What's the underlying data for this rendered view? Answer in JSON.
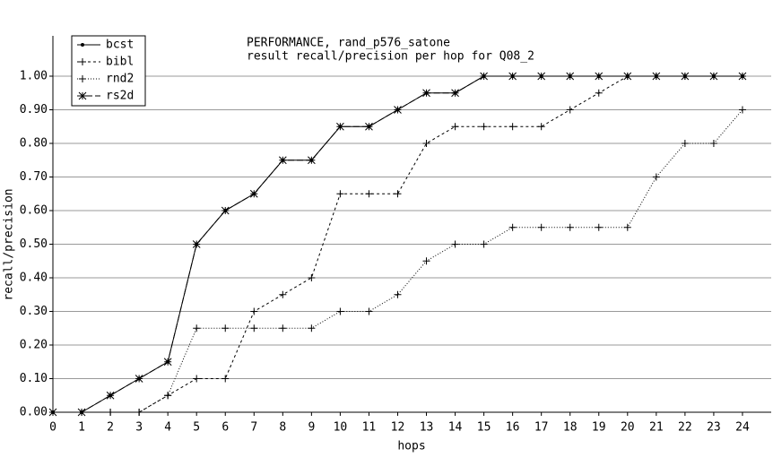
{
  "chart_data": {
    "type": "line",
    "title": "PERFORMANCE, rand_p576_satone",
    "subtitle": "result recall/precision per hop for Q08_2",
    "x_label": "hops",
    "y_label": "recall/precision",
    "x": [
      0,
      1,
      2,
      3,
      4,
      5,
      6,
      7,
      8,
      9,
      10,
      11,
      12,
      13,
      14,
      15,
      16,
      17,
      18,
      19,
      20,
      21,
      22,
      23,
      24
    ],
    "xlim": [
      0,
      25
    ],
    "xticks": [
      0,
      1,
      2,
      3,
      4,
      5,
      6,
      7,
      8,
      9,
      10,
      11,
      12,
      13,
      14,
      15,
      16,
      17,
      18,
      19,
      20,
      21,
      22,
      23,
      24
    ],
    "ylim": [
      0,
      1.12
    ],
    "yticks": [
      {
        "value": 0,
        "label": "0.00"
      },
      {
        "value": 0.1,
        "label": "0.10"
      },
      {
        "value": 0.2,
        "label": "0.20"
      },
      {
        "value": 0.3,
        "label": "0.30"
      },
      {
        "value": 0.4,
        "label": "0.40"
      },
      {
        "value": 0.5,
        "label": "0.50"
      },
      {
        "value": 0.6,
        "label": "0.60"
      },
      {
        "value": 0.7,
        "label": "0.70"
      },
      {
        "value": 0.8,
        "label": "0.80"
      },
      {
        "value": 0.9,
        "label": "0.90"
      },
      {
        "value": 1,
        "label": "1.00"
      }
    ],
    "grid": true,
    "legend": "top-left",
    "series": [
      {
        "name": "bcst",
        "color": "#000000",
        "linestyle": "solid",
        "marker": "dot",
        "values": [
          0,
          0,
          0.05,
          0.1,
          0.15,
          0.5,
          0.6,
          0.65,
          0.75,
          0.75,
          0.85,
          0.85,
          0.9,
          0.95,
          0.95,
          1,
          1,
          1,
          1,
          1,
          1,
          1,
          1,
          1,
          1
        ]
      },
      {
        "name": "bibl",
        "color": "#000000",
        "linestyle": "dashed",
        "marker": "plus",
        "values": [
          0,
          0,
          0,
          0,
          0.05,
          0.1,
          0.1,
          0.3,
          0.35,
          0.4,
          0.65,
          0.65,
          0.65,
          0.8,
          0.85,
          0.85,
          0.85,
          0.85,
          0.9,
          0.95,
          1,
          1,
          1,
          1,
          1
        ]
      },
      {
        "name": "rnd2",
        "color": "#000000",
        "linestyle": "dotted",
        "marker": "plus",
        "values": [
          0,
          0,
          0,
          0,
          0.05,
          0.25,
          0.25,
          0.25,
          0.25,
          0.25,
          0.3,
          0.3,
          0.35,
          0.45,
          0.5,
          0.5,
          0.55,
          0.55,
          0.55,
          0.55,
          0.55,
          0.7,
          0.8,
          0.8,
          0.9
        ]
      },
      {
        "name": "rs2d",
        "color": "#000000",
        "linestyle": "long-dash",
        "marker": "asterisk",
        "values": [
          0,
          0,
          0.05,
          0.1,
          0.15,
          0.5,
          0.6,
          0.65,
          0.75,
          0.75,
          0.85,
          0.85,
          0.9,
          0.95,
          0.95,
          1,
          1,
          1,
          1,
          1,
          1,
          1,
          1,
          1,
          1
        ]
      }
    ]
  }
}
